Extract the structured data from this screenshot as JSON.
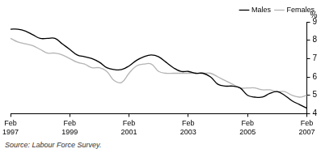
{
  "chart_data": {
    "type": "line",
    "ylabel": "%",
    "note": "Source: Labour Force Survey.",
    "categories": [
      "Feb 1997",
      null,
      null,
      null,
      null,
      null,
      null,
      null,
      "Feb 1999",
      null,
      null,
      null,
      null,
      null,
      null,
      null,
      "Feb 2001",
      null,
      null,
      null,
      null,
      null,
      null,
      null,
      "Feb 2003",
      null,
      null,
      null,
      null,
      null,
      null,
      null,
      "Feb 2005",
      null,
      null,
      null,
      null,
      null,
      null,
      null,
      "Feb 2007"
    ],
    "series": [
      {
        "name": "Males",
        "color": "#000000",
        "values": [
          8.6,
          8.6,
          8.5,
          8.3,
          8.1,
          8.1,
          8.1,
          7.8,
          7.5,
          7.2,
          7.1,
          7.0,
          6.8,
          6.5,
          6.4,
          6.4,
          6.6,
          6.9,
          7.1,
          7.2,
          7.1,
          6.8,
          6.5,
          6.3,
          6.3,
          6.2,
          6.2,
          6.0,
          5.6,
          5.5,
          5.5,
          5.4,
          5.0,
          4.9,
          4.9,
          5.1,
          5.2,
          5.0,
          4.7,
          4.5,
          4.3
        ]
      },
      {
        "name": "Females",
        "color": "#b4b4b4",
        "values": [
          8.1,
          7.9,
          7.8,
          7.7,
          7.5,
          7.3,
          7.3,
          7.2,
          7.0,
          6.8,
          6.7,
          6.5,
          6.5,
          6.3,
          5.8,
          5.7,
          6.2,
          6.6,
          6.7,
          6.7,
          6.3,
          6.2,
          6.2,
          6.2,
          6.2,
          6.2,
          6.2,
          6.2,
          6.0,
          5.8,
          5.6,
          5.4,
          5.4,
          5.4,
          5.3,
          5.3,
          5.2,
          5.2,
          5.0,
          4.9,
          5.0
        ]
      }
    ],
    "ylim": [
      4,
      9
    ],
    "yticks": [
      4,
      5,
      6,
      7,
      8,
      9
    ],
    "grid": false,
    "legend": "top right"
  }
}
